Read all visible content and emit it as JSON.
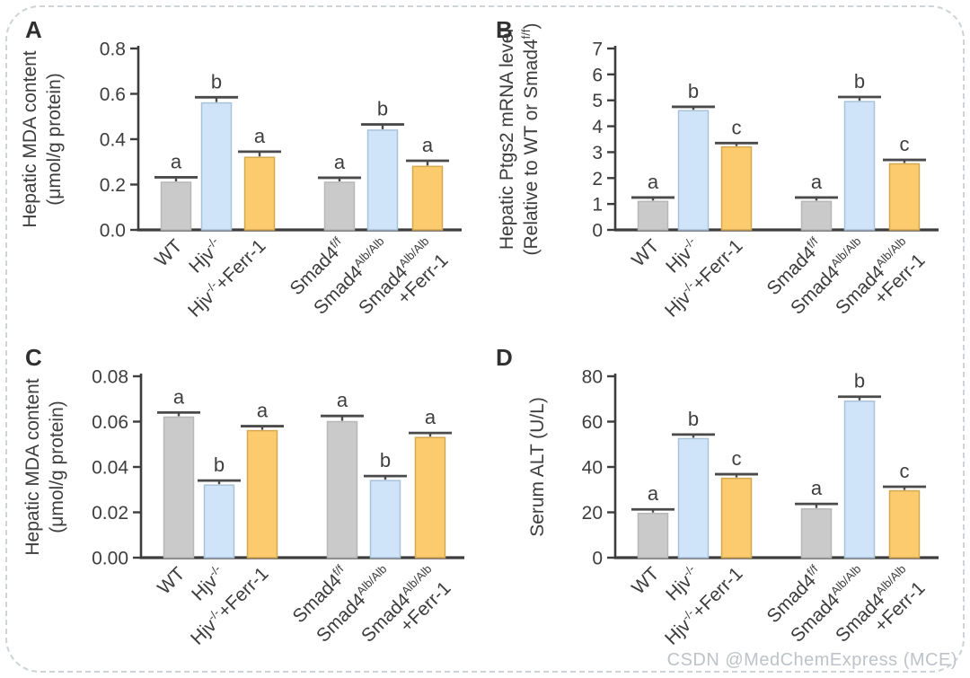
{
  "page": {
    "watermark_text": "CSDN @MedChemExpress (MCE)"
  },
  "colors": {
    "axis": "#3d3d3d",
    "text": "#3d3d3d",
    "error_bar": "#4a4a4a",
    "sig_letter": "#3f3f3f",
    "border": "#cdd3d7",
    "watermark": "#bdc3c8",
    "bar_fills": [
      "#cacaca",
      "#cfe4f9",
      "#fbcb6e",
      "#cacaca",
      "#cfe4f9",
      "#fbcb6e"
    ],
    "bar_strokes": [
      "#b7b7b7",
      "#a9c2d8",
      "#d4a851",
      "#b7b7b7",
      "#a9c2d8",
      "#d4a851"
    ]
  },
  "panels": [
    {
      "label": "A"
    },
    {
      "label": "B"
    },
    {
      "label": "C"
    },
    {
      "label": "D"
    }
  ],
  "chart_data": [
    {
      "type": "bar",
      "panel": "A",
      "ylabel_lines": [
        "Hepatic MDA content",
        "(μmol/g protein)"
      ],
      "categories": [
        "WT",
        "Hjv^{-/-}",
        "Hjv^{-/-}+Ferr-1",
        "Smad4^{f/f}",
        "Smad4^{Alb/Alb}",
        "Smad4^{Alb/Alb}\n+Ferr-1"
      ],
      "values": [
        0.21,
        0.56,
        0.32,
        0.21,
        0.44,
        0.28
      ],
      "errors": [
        0.022,
        0.025,
        0.025,
        0.02,
        0.025,
        0.025
      ],
      "sig_letters": [
        "a",
        "b",
        "a",
        "a",
        "b",
        "a"
      ],
      "yticks": [
        "0.0",
        "0.2",
        "0.4",
        "0.6",
        "0.8"
      ],
      "ylim": [
        0,
        0.8
      ],
      "grid": false,
      "left_margin": 138
    },
    {
      "type": "bar",
      "panel": "B",
      "ylabel_lines": [
        "Hepatic Ptgs2 mRNA level",
        "(Relative to WT or Smad4^{f/f})"
      ],
      "categories": [
        "WT",
        "Hjv^{-/-}",
        "Hjv^{-/-}+Ferr-1",
        "Smad4^{f/f}",
        "Smad4^{Alb/Alb}",
        "Smad4^{Alb/Alb}\n+Ferr-1"
      ],
      "values": [
        1.1,
        4.6,
        3.2,
        1.1,
        4.95,
        2.55
      ],
      "errors": [
        0.15,
        0.15,
        0.15,
        0.15,
        0.18,
        0.15
      ],
      "sig_letters": [
        "a",
        "b",
        "c",
        "a",
        "b",
        "c"
      ],
      "yticks": [
        "0",
        "1",
        "2",
        "3",
        "4",
        "5",
        "6",
        "7"
      ],
      "ylim": [
        0,
        7
      ],
      "grid": false,
      "left_margin": 145
    },
    {
      "type": "bar",
      "panel": "C",
      "ylabel_lines": [
        "Hepatic MDA content",
        "(μmol/g protein)"
      ],
      "categories": [
        "WT",
        "Hjv^{-/-}",
        "Hjv^{-/-}+Ferr-1",
        "Smad4^{f/f}",
        "Smad4^{Alb/Alb}",
        "Smad4^{Alb/Alb}\n+Ferr-1"
      ],
      "values": [
        0.062,
        0.032,
        0.056,
        0.06,
        0.034,
        0.053
      ],
      "errors": [
        0.002,
        0.002,
        0.002,
        0.0025,
        0.002,
        0.002
      ],
      "sig_letters": [
        "a",
        "b",
        "a",
        "a",
        "b",
        "a"
      ],
      "yticks": [
        "0.00",
        "0.02",
        "0.04",
        "0.06",
        "0.08"
      ],
      "ylim": [
        0,
        0.08
      ],
      "grid": false,
      "left_margin": 141
    },
    {
      "type": "bar",
      "panel": "D",
      "ylabel_lines": [
        "Serum ALT (U/L)"
      ],
      "categories": [
        "WT",
        "Hjv^{-/-}",
        "Hjv^{-/-}+Ferr-1",
        "Smad4^{f/f}",
        "Smad4^{Alb/Alb}",
        "Smad4^{Alb/Alb}\n+Ferr-1"
      ],
      "values": [
        19.5,
        52.5,
        35,
        21.5,
        69,
        29.5
      ],
      "errors": [
        1.8,
        1.8,
        1.8,
        2.2,
        2,
        1.8
      ],
      "sig_letters": [
        "a",
        "b",
        "c",
        "a",
        "b",
        "c"
      ],
      "yticks": [
        "0",
        "20",
        "40",
        "60",
        "80"
      ],
      "ylim": [
        0,
        80
      ],
      "grid": false,
      "left_margin": 145
    }
  ]
}
